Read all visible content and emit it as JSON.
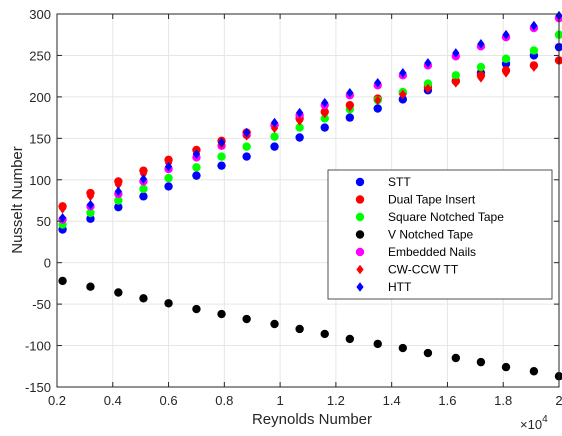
{
  "chart_data": {
    "type": "scatter",
    "title": "",
    "xlabel": "Reynolds Number",
    "ylabel": "Nusselt Number",
    "x_multiplier_label": {
      "base": "×10",
      "exponent": "4"
    },
    "xlim": [
      0.2,
      2.0
    ],
    "ylim": [
      -150,
      300
    ],
    "xticks": [
      0.2,
      0.4,
      0.6,
      0.8,
      1,
      1.2,
      1.4,
      1.6,
      1.8,
      2
    ],
    "xtick_labels": [
      "0.2",
      "0.4",
      "0.6",
      "0.8",
      "1",
      "1.2",
      "1.4",
      "1.6",
      "1.8",
      "2"
    ],
    "yticks": [
      -150,
      -100,
      -50,
      0,
      50,
      100,
      150,
      200,
      250,
      300
    ],
    "ytick_labels": [
      "-150",
      "-100",
      "-50",
      "0",
      "50",
      "100",
      "150",
      "200",
      "250",
      "300"
    ],
    "grid": true,
    "legend_position": "center-right",
    "x": [
      0.22,
      0.32,
      0.42,
      0.51,
      0.6,
      0.7,
      0.79,
      0.88,
      0.98,
      1.07,
      1.16,
      1.25,
      1.35,
      1.44,
      1.53,
      1.63,
      1.72,
      1.81,
      1.91,
      2.0
    ],
    "series": [
      {
        "name": "STT",
        "color": "#0000ff",
        "marker": "circle",
        "values": [
          40,
          53,
          67,
          80,
          92,
          105,
          117,
          128,
          140,
          151,
          163,
          175,
          186,
          197,
          208,
          219,
          229,
          240,
          250,
          260
        ]
      },
      {
        "name": "Dual Tape Insert",
        "color": "#ff0000",
        "marker": "circle",
        "values": [
          68,
          84,
          98,
          111,
          124,
          136,
          147,
          157,
          166,
          174,
          182,
          190,
          198,
          205,
          212,
          219,
          226,
          232,
          238,
          244
        ]
      },
      {
        "name": "Square Notched Tape",
        "color": "#00ff00",
        "marker": "circle",
        "values": [
          46,
          60,
          75,
          89,
          102,
          115,
          128,
          140,
          152,
          163,
          174,
          185,
          196,
          206,
          216,
          226,
          236,
          246,
          256,
          275
        ]
      },
      {
        "name": "V Notched Tape",
        "color": "#000000",
        "marker": "circle",
        "values": [
          -22,
          -29,
          -36,
          -43,
          -49,
          -56,
          -62,
          -68,
          -74,
          -80,
          -86,
          -92,
          -98,
          -103,
          -109,
          -115,
          -120,
          -126,
          -131,
          -137
        ]
      },
      {
        "name": "Embedded Nails",
        "color": "#ff00ff",
        "marker": "circle",
        "values": [
          52,
          68,
          83,
          98,
          113,
          127,
          141,
          154,
          166,
          178,
          190,
          202,
          214,
          226,
          238,
          249,
          261,
          272,
          283,
          295
        ]
      },
      {
        "name": "CW-CCW TT",
        "color": "#ff0000",
        "marker": "diamond",
        "values": [
          65,
          80,
          94,
          107,
          120,
          132,
          143,
          153,
          162,
          171,
          180,
          188,
          196,
          203,
          210,
          217,
          223,
          229,
          236,
          244
        ]
      },
      {
        "name": "HTT",
        "color": "#0000ff",
        "marker": "diamond",
        "values": [
          54,
          70,
          86,
          101,
          116,
          131,
          145,
          157,
          169,
          181,
          193,
          205,
          217,
          229,
          241,
          253,
          264,
          275,
          286,
          298
        ]
      }
    ]
  }
}
